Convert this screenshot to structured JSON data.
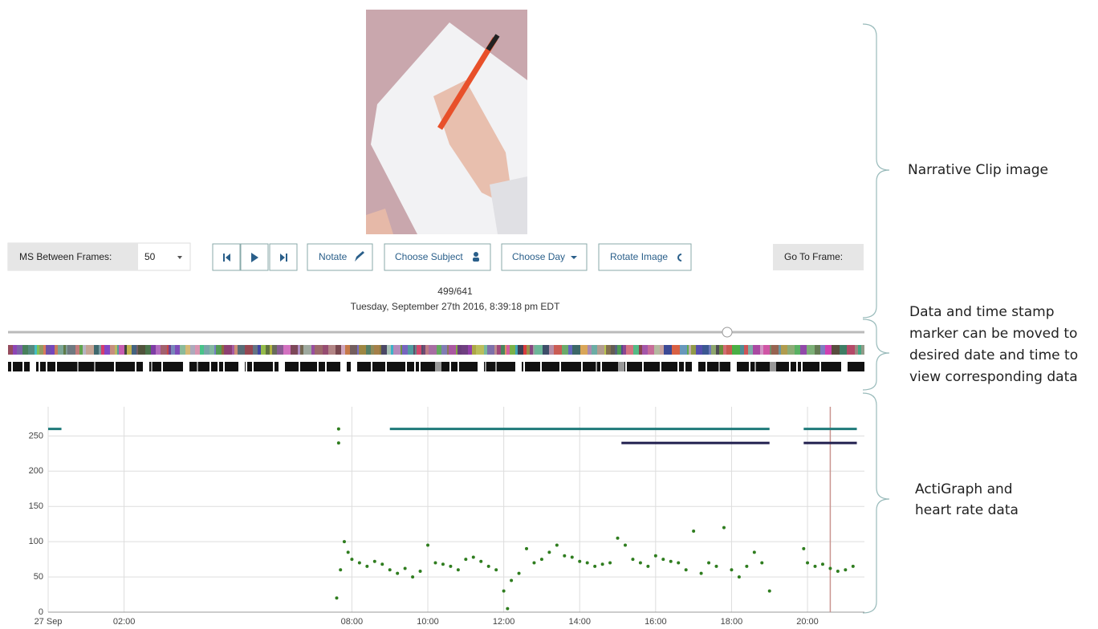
{
  "controls": {
    "ms_label": "MS Between Frames:",
    "ms_value": "50",
    "buttons": [
      "Notate",
      "Choose Subject",
      "Choose Day",
      "Rotate Image"
    ],
    "go_to_frame": "Go To Frame:"
  },
  "frame": {
    "counter": "499/641",
    "timestamp": "Tuesday, September 27th 2016, 8:39:18 pm EDT"
  },
  "annotations": {
    "clip": "Narrative Clip image",
    "marker": [
      "Data and time stamp",
      "marker can be moved to",
      "desired date and time to",
      "view corresponding data"
    ],
    "actigraph": [
      "ActiGraph and",
      "heart rate data"
    ]
  },
  "chart": {
    "type": "scatter",
    "xlim": [
      0,
      21.5
    ],
    "ylim": [
      0,
      280
    ],
    "yticks": [
      0,
      50,
      100,
      150,
      200,
      250
    ],
    "xticks": [
      {
        "value": 0,
        "label": "27 Sep"
      },
      {
        "value": 2,
        "label": "02:00"
      },
      {
        "value": 8,
        "label": "08:00"
      },
      {
        "value": 10,
        "label": "10:00"
      },
      {
        "value": 12,
        "label": "12:00"
      },
      {
        "value": 14,
        "label": "14:00"
      },
      {
        "value": 16,
        "label": "16:00"
      },
      {
        "value": 18,
        "label": "18:00"
      },
      {
        "value": 20,
        "label": "20:00"
      }
    ],
    "grid": true,
    "marker_x": 20.6,
    "marker_color": "#c9948f",
    "series": [
      {
        "type": "scatter",
        "color": "#2f7d1f",
        "x": [
          7.65,
          7.65,
          7.6,
          7.7,
          7.8,
          7.9,
          8.0,
          8.2,
          8.4,
          8.6,
          8.8,
          9.0,
          9.2,
          9.4,
          9.6,
          9.8,
          10.0,
          10.2,
          10.4,
          10.6,
          10.8,
          11.0,
          11.2,
          11.4,
          11.6,
          11.8,
          12.0,
          12.1,
          12.2,
          12.4,
          12.6,
          12.8,
          13.0,
          13.2,
          13.4,
          13.6,
          13.8,
          14.0,
          14.2,
          14.4,
          14.6,
          14.8,
          15.0,
          15.2,
          15.4,
          15.6,
          15.8,
          16.0,
          16.2,
          16.4,
          16.6,
          16.8,
          17.0,
          17.2,
          17.4,
          17.6,
          17.8,
          18.0,
          18.2,
          18.4,
          18.6,
          18.8,
          19.0,
          19.9,
          20.0,
          20.2,
          20.4,
          20.6,
          20.8,
          21.0,
          21.2
        ],
        "values": [
          260,
          240,
          20,
          60,
          100,
          85,
          75,
          70,
          65,
          72,
          68,
          60,
          55,
          62,
          50,
          58,
          95,
          70,
          68,
          65,
          60,
          75,
          78,
          72,
          65,
          60,
          30,
          5,
          45,
          55,
          90,
          70,
          75,
          85,
          95,
          80,
          78,
          72,
          70,
          65,
          68,
          70,
          105,
          95,
          75,
          70,
          65,
          80,
          75,
          72,
          70,
          60,
          115,
          55,
          70,
          65,
          120,
          60,
          50,
          65,
          85,
          70,
          30,
          90,
          70,
          65,
          68,
          62,
          58,
          60,
          65
        ]
      },
      {
        "type": "line",
        "color": "#1f7a7a",
        "x": [
          0,
          0.35,
          0.4,
          9.0,
          19.0,
          19.1,
          19.9,
          21.3
        ],
        "values": [
          260,
          260,
          null,
          260,
          260,
          null,
          260,
          260
        ]
      },
      {
        "type": "line",
        "color": "#22204f",
        "x": [
          15.1,
          19.0,
          19.1,
          19.9,
          21.3
        ],
        "values": [
          240,
          240,
          null,
          240,
          240
        ]
      }
    ]
  }
}
